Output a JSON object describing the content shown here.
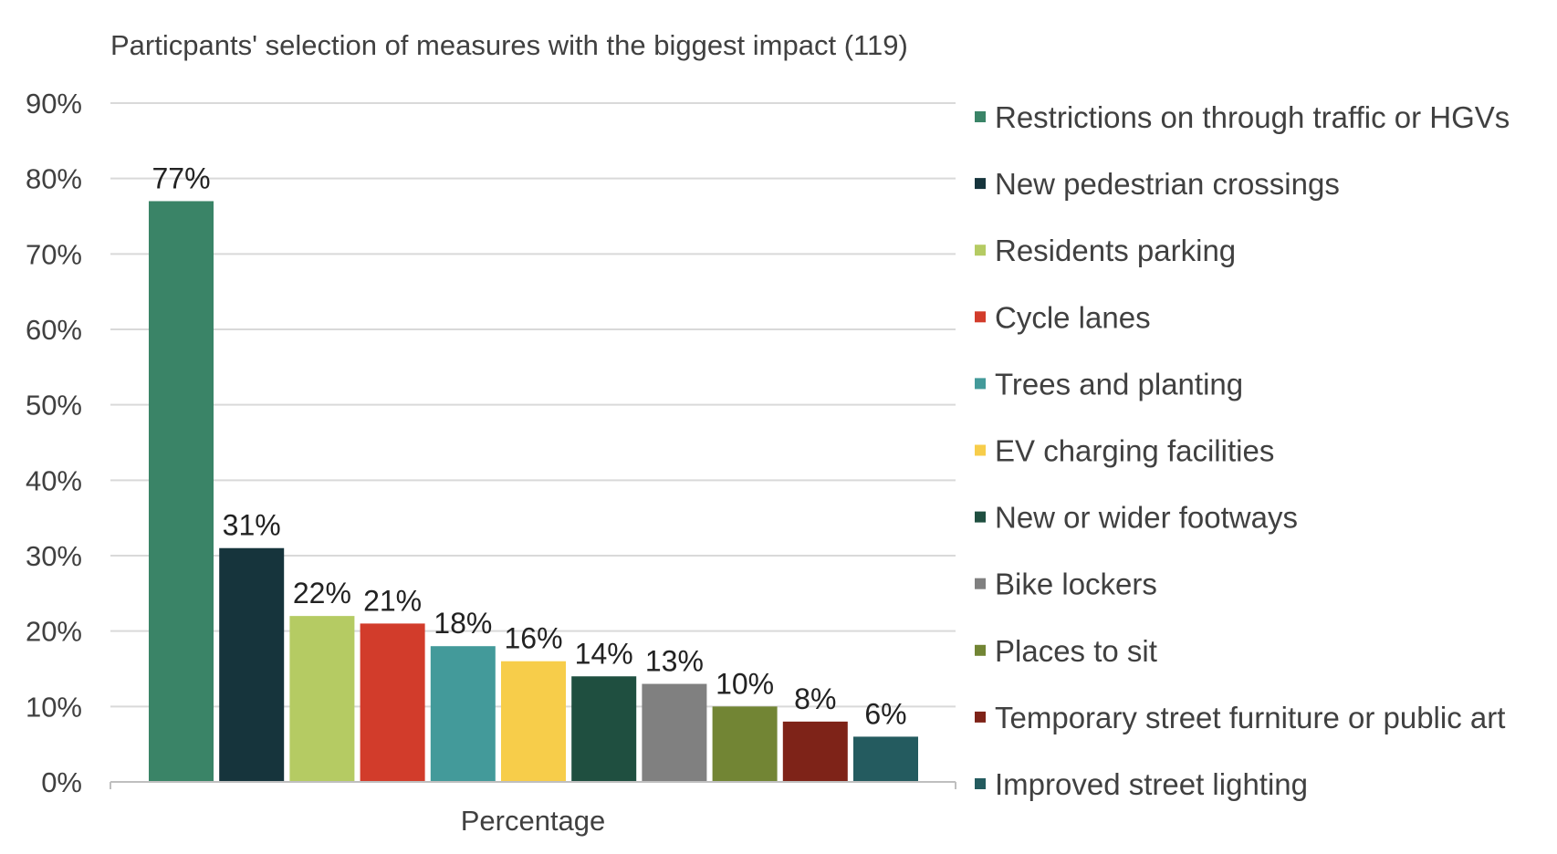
{
  "chart_data": {
    "type": "bar",
    "title": "Particpants' selection of measures with the biggest impact  (119)",
    "xlabel": "Percentage",
    "ylabel": "",
    "ylim": [
      0,
      90
    ],
    "yticks": [
      "0%",
      "10%",
      "20%",
      "30%",
      "40%",
      "50%",
      "60%",
      "70%",
      "80%",
      "90%"
    ],
    "grid": true,
    "legend_position": "right",
    "series": [
      {
        "name": "Restrictions on through traffic or HGVs",
        "value": 77,
        "label": "77%",
        "color": "#3a8467"
      },
      {
        "name": "New pedestrian crossings",
        "value": 31,
        "label": "31%",
        "color": "#16343c"
      },
      {
        "name": "Residents parking",
        "value": 22,
        "label": "22%",
        "color": "#b5cb63"
      },
      {
        "name": "Cycle lanes",
        "value": 21,
        "label": "21%",
        "color": "#d23c2b"
      },
      {
        "name": "Trees and planting",
        "value": 18,
        "label": "18%",
        "color": "#439a9a"
      },
      {
        "name": "EV charging facilities",
        "value": 16,
        "label": "16%",
        "color": "#f7cd4a"
      },
      {
        "name": "New or wider footways",
        "value": 14,
        "label": "14%",
        "color": "#1f4f40"
      },
      {
        "name": "Bike lockers",
        "value": 13,
        "label": "13%",
        "color": "#808080"
      },
      {
        "name": "Places to sit",
        "value": 10,
        "label": "10%",
        "color": "#728534"
      },
      {
        "name": "Temporary street furniture or public art",
        "value": 8,
        "label": "8%",
        "color": "#7e2318"
      },
      {
        "name": "Improved street lighting",
        "value": 6,
        "label": "6%",
        "color": "#245b5f"
      }
    ]
  }
}
